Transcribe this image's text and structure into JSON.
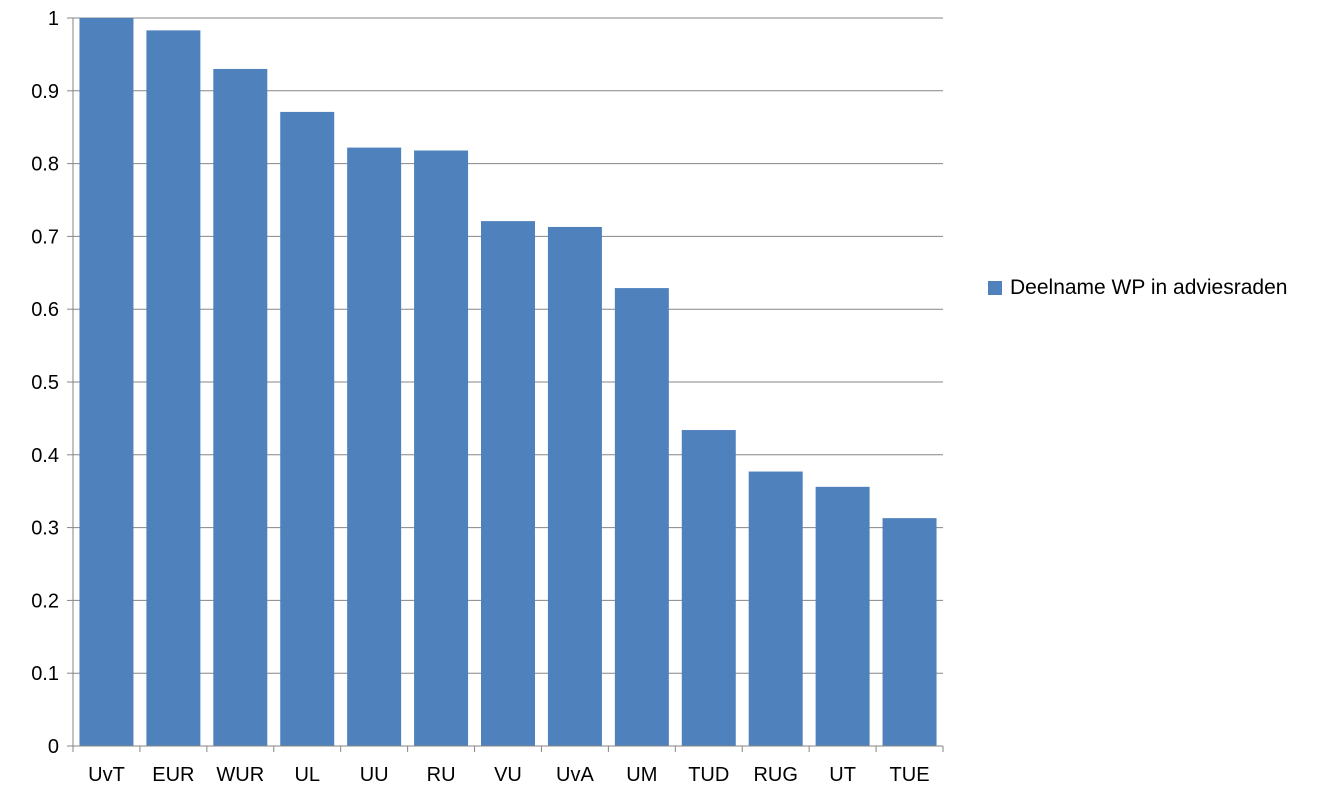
{
  "chart_data": {
    "type": "bar",
    "title": "",
    "xlabel": "",
    "ylabel": "",
    "categories": [
      "UvT",
      "EUR",
      "WUR",
      "UL",
      "UU",
      "RU",
      "VU",
      "UvA",
      "UM",
      "TUD",
      "RUG",
      "UT",
      "TUE"
    ],
    "series": [
      {
        "name": "Deelname WP in adviesraden",
        "color": "#4F81BD",
        "values": [
          1.0,
          0.983,
          0.93,
          0.871,
          0.822,
          0.818,
          0.721,
          0.713,
          0.629,
          0.434,
          0.377,
          0.356,
          0.313
        ]
      }
    ],
    "ylim": [
      0,
      1
    ],
    "yticks": [
      "0",
      "0.1",
      "0.2",
      "0.3",
      "0.4",
      "0.5",
      "0.6",
      "0.7",
      "0.8",
      "0.9",
      "1"
    ],
    "grid": true,
    "legend_position": "right"
  }
}
